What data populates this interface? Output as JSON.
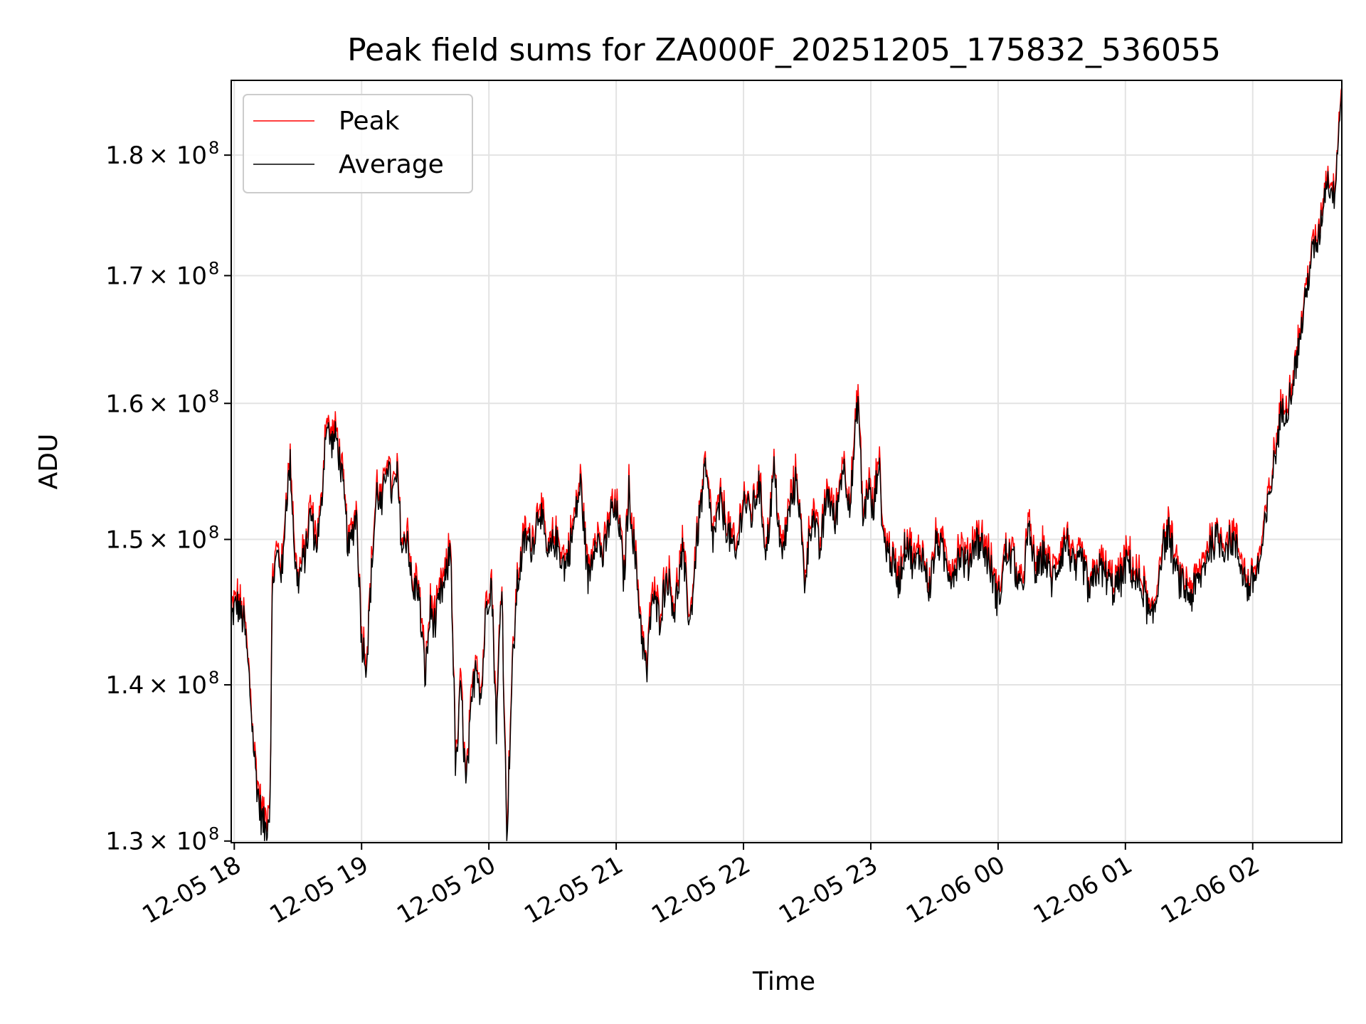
{
  "chart_data": {
    "type": "line",
    "title": "Peak field sums for ZA000F_20251205_175832_536055",
    "xlabel": "Time",
    "ylabel": "ADU",
    "y_scale": "log",
    "grid": true,
    "legend_position": "upper-left",
    "xlim_hours": [
      17.976,
      26.7
    ],
    "ylim": [
      129900000,
      186500000
    ],
    "x_ticks": [
      {
        "hour": 18,
        "label": "12-05 18"
      },
      {
        "hour": 19,
        "label": "12-05 19"
      },
      {
        "hour": 20,
        "label": "12-05 20"
      },
      {
        "hour": 21,
        "label": "12-05 21"
      },
      {
        "hour": 22,
        "label": "12-05 22"
      },
      {
        "hour": 23,
        "label": "12-05 23"
      },
      {
        "hour": 24,
        "label": "12-06 00"
      },
      {
        "hour": 25,
        "label": "12-06 01"
      },
      {
        "hour": 26,
        "label": "12-06 02"
      }
    ],
    "y_ticks": [
      {
        "value": 130000000,
        "mantissa": "1.3",
        "exponent": "8"
      },
      {
        "value": 140000000,
        "mantissa": "1.4",
        "exponent": "8"
      },
      {
        "value": 150000000,
        "mantissa": "1.5",
        "exponent": "8"
      },
      {
        "value": 160000000,
        "mantissa": "1.6",
        "exponent": "8"
      },
      {
        "value": 170000000,
        "mantissa": "1.7",
        "exponent": "8"
      },
      {
        "value": 180000000,
        "mantissa": "1.8",
        "exponent": "8"
      }
    ],
    "y_tick_text": {
      "times": "× 10"
    },
    "series": [
      {
        "name": "Peak",
        "color": "#ff0000"
      },
      {
        "name": "Average",
        "color": "#000000"
      }
    ],
    "average_keypoints_hours_values": [
      [
        17.976,
        144.5
      ],
      [
        18.02,
        145.5
      ],
      [
        18.08,
        144.0
      ],
      [
        18.12,
        140.0
      ],
      [
        18.16,
        135.0
      ],
      [
        18.2,
        132.0
      ],
      [
        18.24,
        130.6
      ],
      [
        18.28,
        132.0
      ],
      [
        18.3,
        147.0
      ],
      [
        18.34,
        149.0
      ],
      [
        18.38,
        147.5
      ],
      [
        18.4,
        152.0
      ],
      [
        18.44,
        155.5
      ],
      [
        18.48,
        148.0
      ],
      [
        18.5,
        147.0
      ],
      [
        18.56,
        149.0
      ],
      [
        18.6,
        152.0
      ],
      [
        18.64,
        149.5
      ],
      [
        18.68,
        151.5
      ],
      [
        18.72,
        158.5
      ],
      [
        18.76,
        157.0
      ],
      [
        18.8,
        157.5
      ],
      [
        18.84,
        155.0
      ],
      [
        18.9,
        149.0
      ],
      [
        18.96,
        152.0
      ],
      [
        19.0,
        143.0
      ],
      [
        19.04,
        141.5
      ],
      [
        19.08,
        148.0
      ],
      [
        19.12,
        153.5
      ],
      [
        19.16,
        152.0
      ],
      [
        19.2,
        156.0
      ],
      [
        19.24,
        153.0
      ],
      [
        19.28,
        154.5
      ],
      [
        19.32,
        149.0
      ],
      [
        19.36,
        150.5
      ],
      [
        19.4,
        146.0
      ],
      [
        19.44,
        147.0
      ],
      [
        19.5,
        140.5
      ],
      [
        19.54,
        145.0
      ],
      [
        19.58,
        144.0
      ],
      [
        19.62,
        146.0
      ],
      [
        19.66,
        147.0
      ],
      [
        19.7,
        149.5
      ],
      [
        19.74,
        134.0
      ],
      [
        19.78,
        140.0
      ],
      [
        19.82,
        133.0
      ],
      [
        19.86,
        138.0
      ],
      [
        19.9,
        142.0
      ],
      [
        19.94,
        139.0
      ],
      [
        19.98,
        145.5
      ],
      [
        20.02,
        147.0
      ],
      [
        20.06,
        137.0
      ],
      [
        20.1,
        147.5
      ],
      [
        20.14,
        130.0
      ],
      [
        20.18,
        140.0
      ],
      [
        20.22,
        146.5
      ],
      [
        20.28,
        150.0
      ],
      [
        20.34,
        149.5
      ],
      [
        20.4,
        152.5
      ],
      [
        20.46,
        148.5
      ],
      [
        20.52,
        150.0
      ],
      [
        20.6,
        148.0
      ],
      [
        20.66,
        150.5
      ],
      [
        20.72,
        154.0
      ],
      [
        20.78,
        147.0
      ],
      [
        20.84,
        150.5
      ],
      [
        20.9,
        148.5
      ],
      [
        20.96,
        152.0
      ],
      [
        21.02,
        151.5
      ],
      [
        21.06,
        147.0
      ],
      [
        21.1,
        153.5
      ],
      [
        21.16,
        147.5
      ],
      [
        21.2,
        143.5
      ],
      [
        21.24,
        140.5
      ],
      [
        21.28,
        146.0
      ],
      [
        21.34,
        144.5
      ],
      [
        21.4,
        147.5
      ],
      [
        21.46,
        145.0
      ],
      [
        21.52,
        149.0
      ],
      [
        21.58,
        144.0
      ],
      [
        21.64,
        150.5
      ],
      [
        21.7,
        155.0
      ],
      [
        21.76,
        150.0
      ],
      [
        21.82,
        152.5
      ],
      [
        21.88,
        150.5
      ],
      [
        21.94,
        148.5
      ],
      [
        22.0,
        153.0
      ],
      [
        22.06,
        151.5
      ],
      [
        22.12,
        154.0
      ],
      [
        22.18,
        149.0
      ],
      [
        22.24,
        155.0
      ],
      [
        22.3,
        148.5
      ],
      [
        22.36,
        152.0
      ],
      [
        22.42,
        154.5
      ],
      [
        22.48,
        147.0
      ],
      [
        22.54,
        152.0
      ],
      [
        22.6,
        149.0
      ],
      [
        22.66,
        153.5
      ],
      [
        22.72,
        151.0
      ],
      [
        22.78,
        155.5
      ],
      [
        22.84,
        152.5
      ],
      [
        22.9,
        160.5
      ],
      [
        22.94,
        151.0
      ],
      [
        22.98,
        154.0
      ],
      [
        23.02,
        151.5
      ],
      [
        23.06,
        156.0
      ],
      [
        23.1,
        150.0
      ],
      [
        23.16,
        148.5
      ],
      [
        23.22,
        147.0
      ],
      [
        23.28,
        150.0
      ],
      [
        23.34,
        148.0
      ],
      [
        23.4,
        149.0
      ],
      [
        23.46,
        146.5
      ],
      [
        23.52,
        150.0
      ],
      [
        23.58,
        148.5
      ],
      [
        23.64,
        147.5
      ],
      [
        23.7,
        149.0
      ],
      [
        23.76,
        148.0
      ],
      [
        23.82,
        150.0
      ],
      [
        23.88,
        149.5
      ],
      [
        23.94,
        148.0
      ],
      [
        24.0,
        145.5
      ],
      [
        24.06,
        149.0
      ],
      [
        24.12,
        148.5
      ],
      [
        24.18,
        146.0
      ],
      [
        24.24,
        150.5
      ],
      [
        24.3,
        147.5
      ],
      [
        24.36,
        149.0
      ],
      [
        24.42,
        147.0
      ],
      [
        24.48,
        148.5
      ],
      [
        24.54,
        150.0
      ],
      [
        24.6,
        147.5
      ],
      [
        24.66,
        148.5
      ],
      [
        24.72,
        146.0
      ],
      [
        24.78,
        148.0
      ],
      [
        24.84,
        147.5
      ],
      [
        24.9,
        146.5
      ],
      [
        24.96,
        147.0
      ],
      [
        25.02,
        148.5
      ],
      [
        25.08,
        147.0
      ],
      [
        25.14,
        146.5
      ],
      [
        25.2,
        144.0
      ],
      [
        25.24,
        145.5
      ],
      [
        25.28,
        149.0
      ],
      [
        25.34,
        150.5
      ],
      [
        25.4,
        147.5
      ],
      [
        25.46,
        146.5
      ],
      [
        25.52,
        146.0
      ],
      [
        25.6,
        147.5
      ],
      [
        25.66,
        149.5
      ],
      [
        25.72,
        150.0
      ],
      [
        25.78,
        149.5
      ],
      [
        25.84,
        150.0
      ],
      [
        25.9,
        148.5
      ],
      [
        25.96,
        146.5
      ],
      [
        26.0,
        147.0
      ],
      [
        26.06,
        148.5
      ],
      [
        26.1,
        151.0
      ],
      [
        26.16,
        155.0
      ],
      [
        26.22,
        159.0
      ],
      [
        26.28,
        160.0
      ],
      [
        26.34,
        163.0
      ],
      [
        26.4,
        167.0
      ],
      [
        26.46,
        171.5
      ],
      [
        26.52,
        173.0
      ],
      [
        26.58,
        178.0
      ],
      [
        26.64,
        176.5
      ],
      [
        26.7,
        186.0
      ]
    ]
  }
}
